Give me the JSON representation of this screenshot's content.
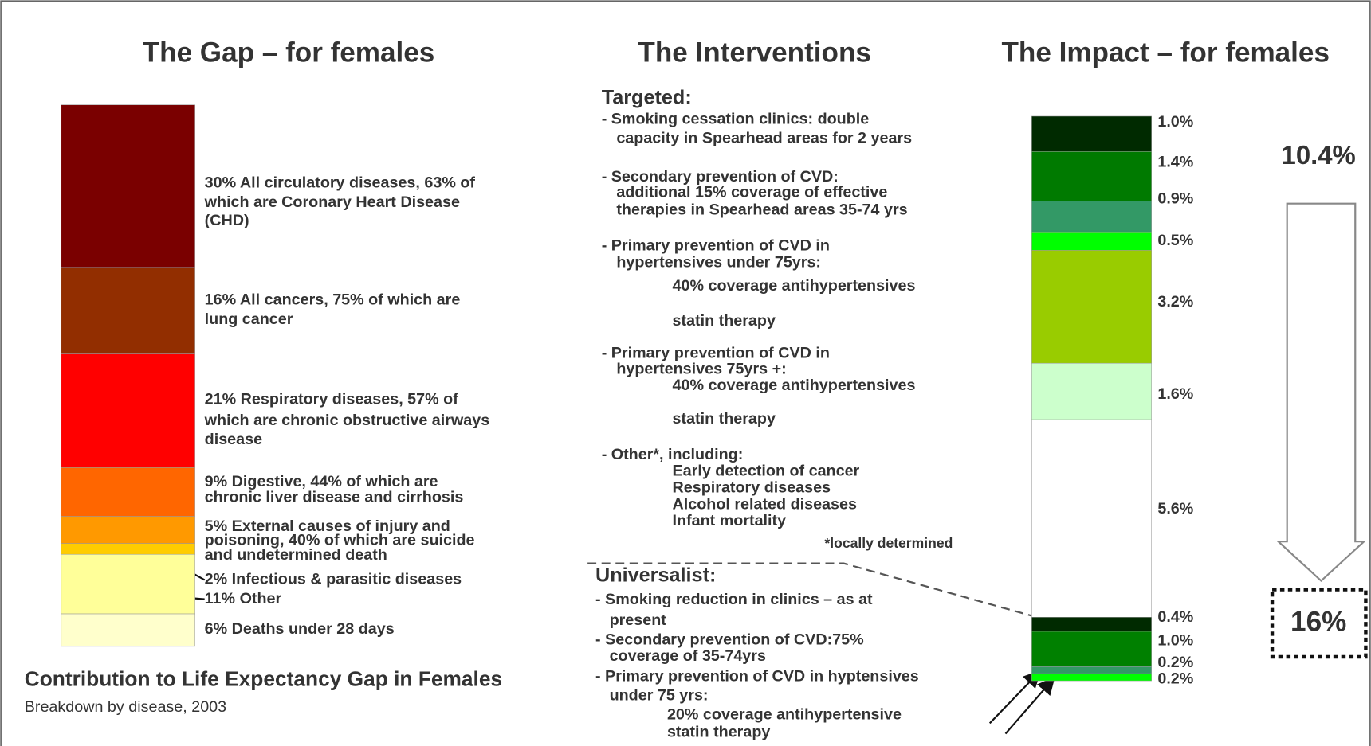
{
  "gap": {
    "title": "The Gap – for females",
    "segments": [
      {
        "value": 30,
        "color": "#7a0000",
        "lines": [
          "30% All circulatory diseases, 63% of",
          "which are Coronary Heart Disease",
          "(CHD)"
        ]
      },
      {
        "value": 16,
        "color": "#922e00",
        "lines": [
          "16% All cancers, 75% of which are",
          "lung cancer"
        ]
      },
      {
        "value": 21,
        "color": "#ff0000",
        "lines": [
          "21% Respiratory diseases, 57% of",
          "which are chronic obstructive airways",
          "disease"
        ]
      },
      {
        "value": 9,
        "color": "#ff6600",
        "lines": [
          "9% Digestive, 44% of which are",
          "chronic liver disease and cirrhosis"
        ]
      },
      {
        "value": 5,
        "color": "#ff9900",
        "lines": [
          "5% External causes of injury and",
          "poisoning,  40% of which are suicide",
          "and undetermined death"
        ]
      },
      {
        "value": 2,
        "color": "#ffcc00",
        "lines": [
          "2% Infectious & parasitic diseases"
        ]
      },
      {
        "value": 11,
        "color": "#ffff99",
        "lines": [
          "11% Other"
        ]
      },
      {
        "value": 6,
        "color": "#ffffcc",
        "lines": [
          "6% Deaths under 28 days"
        ]
      }
    ],
    "caption": "Contribution to Life Expectancy Gap in Females",
    "subcaption": "Breakdown by disease, 2003"
  },
  "interventions": {
    "title": "The Interventions",
    "targeted_heading": "Targeted:",
    "targeted": [
      "- Smoking cessation clinics: double",
      "capacity in Spearhead areas for 2 years",
      "- Secondary prevention of CVD:",
      "additional 15% coverage of effective",
      "therapies in Spearhead areas 35-74 yrs",
      "- Primary prevention of CVD in",
      "hypertensives under 75yrs:",
      "40% coverage antihypertensives",
      "statin therapy",
      "- Primary prevention of CVD in",
      "hypertensives 75yrs +:",
      "40% coverage antihypertensives",
      "statin therapy",
      "- Other*, including:",
      "Early detection of cancer",
      "Respiratory diseases",
      "Alcohol related diseases",
      "Infant mortality"
    ],
    "footnote": "*locally determined",
    "universalist_heading": "Universalist:",
    "universalist": [
      "- Smoking reduction in clinics – as at",
      "present",
      "- Secondary prevention of CVD:75%",
      "coverage of 35-74yrs",
      "- Primary prevention of CVD in hyptensives",
      "under 75 yrs:",
      "20% coverage antihypertensive",
      "statin therapy"
    ]
  },
  "impact": {
    "title": "The Impact – for females",
    "segments": [
      {
        "value": 1.0,
        "label": "1.0%",
        "color": "#002a00"
      },
      {
        "value": 1.4,
        "label": "1.4%",
        "color": "#007a00"
      },
      {
        "value": 0.9,
        "label": "0.9%",
        "color": "#339966"
      },
      {
        "value": 0.5,
        "label": "0.5%",
        "color": "#00ff00"
      },
      {
        "value": 3.2,
        "label": "3.2%",
        "color": "#99cc00"
      },
      {
        "value": 1.6,
        "label": "1.6%",
        "color": "#ccffcc"
      },
      {
        "value": 5.6,
        "label": "5.6%",
        "color": "#ffffff"
      },
      {
        "value": 0.4,
        "label": "0.4%",
        "color": "#002a00"
      },
      {
        "value": 1.0,
        "label": "1.0%",
        "color": "#008000"
      },
      {
        "value": 0.2,
        "label": "0.2%",
        "color": "#339966"
      },
      {
        "value": 0.2,
        "label": "0.2%",
        "color": "#00ff00"
      }
    ],
    "total_label": "10.4%",
    "result_label": "16%"
  }
}
